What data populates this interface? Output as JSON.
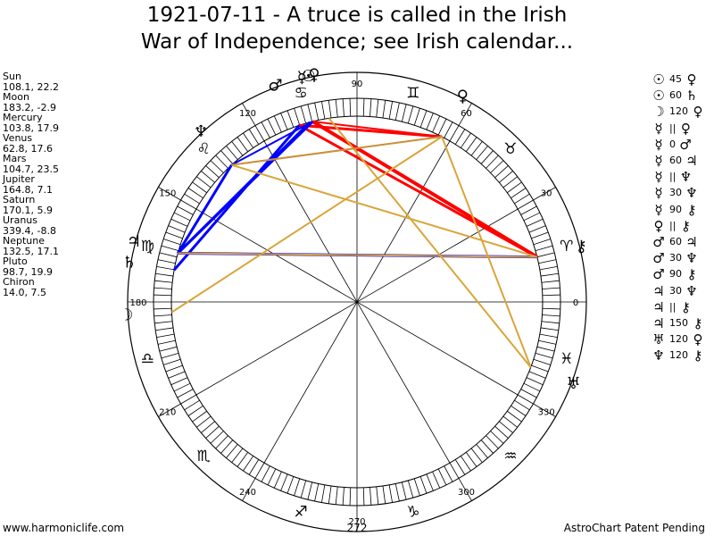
{
  "title": {
    "line1": "1921-07-11 - A truce is called in the Irish",
    "line2": "War of Independence; see Irish calendar..."
  },
  "planets": [
    {
      "name": "Sun",
      "values": "108.1, 22.2"
    },
    {
      "name": "Moon",
      "values": "183.2, -2.9"
    },
    {
      "name": "Mercury",
      "values": "103.8, 17.9"
    },
    {
      "name": "Venus",
      "values": "62.8, 17.6"
    },
    {
      "name": "Mars",
      "values": "104.7, 23.5"
    },
    {
      "name": "Jupiter",
      "values": "164.8, 7.1"
    },
    {
      "name": "Saturn",
      "values": "170.1, 5.9"
    },
    {
      "name": "Uranus",
      "values": "339.4, -8.8"
    },
    {
      "name": "Neptune",
      "values": "132.5, 17.1"
    },
    {
      "name": "Pluto",
      "values": "98.7, 19.9"
    },
    {
      "name": "Chiron",
      "values": "14.0, 7.5"
    }
  ],
  "aspects": [
    {
      "a": "☉",
      "aspect": "45",
      "b": "♀"
    },
    {
      "a": "☉",
      "aspect": "60",
      "b": "♄"
    },
    {
      "a": "☽",
      "aspect": "120",
      "b": "♀"
    },
    {
      "a": "☿",
      "aspect": "||",
      "b": "♀"
    },
    {
      "a": "☿",
      "aspect": "0",
      "b": "♂"
    },
    {
      "a": "☿",
      "aspect": "60",
      "b": "♃"
    },
    {
      "a": "☿",
      "aspect": "||",
      "b": "♆"
    },
    {
      "a": "☿",
      "aspect": "30",
      "b": "♆"
    },
    {
      "a": "☿",
      "aspect": "90",
      "b": "⚷"
    },
    {
      "a": "♀",
      "aspect": "||",
      "b": "⚷"
    },
    {
      "a": "♂",
      "aspect": "60",
      "b": "♃"
    },
    {
      "a": "♂",
      "aspect": "30",
      "b": "♆"
    },
    {
      "a": "♂",
      "aspect": "90",
      "b": "⚷"
    },
    {
      "a": "♃",
      "aspect": "30",
      "b": "♆"
    },
    {
      "a": "♃",
      "aspect": "||",
      "b": "⚷"
    },
    {
      "a": "♃",
      "aspect": "150",
      "b": "⚷"
    },
    {
      "a": "♅",
      "aspect": "120",
      "b": "♀"
    },
    {
      "a": "♆",
      "aspect": "120",
      "b": "⚷"
    }
  ],
  "wheel": {
    "degree_labels": [
      "0",
      "30",
      "60",
      "90",
      "120",
      "150",
      "180",
      "210",
      "240",
      "270",
      "300",
      "330"
    ],
    "bottom_value": "272",
    "signs": [
      {
        "name": "aries",
        "glyph": "♈"
      },
      {
        "name": "taurus",
        "glyph": "♉"
      },
      {
        "name": "gemini",
        "glyph": "♊"
      },
      {
        "name": "cancer",
        "glyph": "♋"
      },
      {
        "name": "leo",
        "glyph": "♌"
      },
      {
        "name": "virgo",
        "glyph": "♍"
      },
      {
        "name": "libra",
        "glyph": "♎"
      },
      {
        "name": "scorpio",
        "glyph": "♏"
      },
      {
        "name": "sagittarius",
        "glyph": "♐"
      },
      {
        "name": "capricorn",
        "glyph": "♑"
      },
      {
        "name": "aquarius",
        "glyph": "♒"
      },
      {
        "name": "pisces",
        "glyph": "♓"
      }
    ],
    "planet_glyphs": [
      {
        "name": "sun",
        "glyph": "☉",
        "lon": 108.1
      },
      {
        "name": "moon",
        "glyph": "☽",
        "lon": 183.2
      },
      {
        "name": "mercury",
        "glyph": "☿",
        "lon": 103.8
      },
      {
        "name": "venus",
        "glyph": "♀",
        "lon": 62.8
      },
      {
        "name": "mars",
        "glyph": "♂",
        "lon": 104.7
      },
      {
        "name": "jupiter",
        "glyph": "♃",
        "lon": 164.8
      },
      {
        "name": "saturn",
        "glyph": "♄",
        "lon": 170.1
      },
      {
        "name": "uranus",
        "glyph": "♅",
        "lon": 339.4
      },
      {
        "name": "neptune",
        "glyph": "♆",
        "lon": 132.5
      },
      {
        "name": "pluto",
        "glyph": "♀",
        "lon": 98.7
      },
      {
        "name": "chiron",
        "glyph": "⚷",
        "lon": 14.0
      }
    ],
    "colors": {
      "opposition": "#ff0000",
      "harmonic": "#0000ff",
      "trine": "#d9a53a",
      "parallel": "#c8903a"
    }
  },
  "footer": {
    "left": "www.harmoniclife.com",
    "right": "AstroChart Patent Pending"
  }
}
